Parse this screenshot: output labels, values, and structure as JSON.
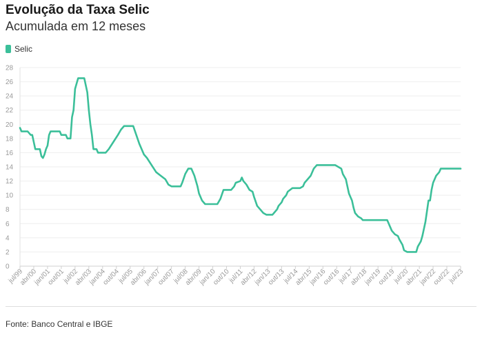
{
  "header": {
    "title": "Evolução da Taxa Selic",
    "subtitle": "Acumulada em 12 meses"
  },
  "legend": {
    "label": "Selic",
    "color": "#3bbf99"
  },
  "footer": {
    "source": "Fonte: Banco Central e IBGE"
  },
  "chart_data": {
    "type": "line",
    "title": "Evolução da Taxa Selic",
    "subtitle": "Acumulada em 12 meses",
    "xlabel": "",
    "ylabel": "",
    "ylim": [
      0,
      28
    ],
    "yticks": [
      0,
      2,
      4,
      6,
      8,
      10,
      12,
      14,
      16,
      18,
      20,
      22,
      24,
      26,
      28
    ],
    "xlim": [
      "1999-07",
      "2023-07"
    ],
    "xticks": [
      {
        "label": "jul/99",
        "t": "1999-07"
      },
      {
        "label": "abr/00",
        "t": "2000-04"
      },
      {
        "label": "jan/01",
        "t": "2001-01"
      },
      {
        "label": "out/01",
        "t": "2001-10"
      },
      {
        "label": "jul/02",
        "t": "2002-07"
      },
      {
        "label": "abr/03",
        "t": "2003-04"
      },
      {
        "label": "jan/04",
        "t": "2004-01"
      },
      {
        "label": "out/04",
        "t": "2004-10"
      },
      {
        "label": "jul/05",
        "t": "2005-07"
      },
      {
        "label": "abr/06",
        "t": "2006-04"
      },
      {
        "label": "jan/07",
        "t": "2007-01"
      },
      {
        "label": "out/07",
        "t": "2007-10"
      },
      {
        "label": "jul/08",
        "t": "2008-07"
      },
      {
        "label": "abr/09",
        "t": "2009-04"
      },
      {
        "label": "jan/10",
        "t": "2010-01"
      },
      {
        "label": "out/10",
        "t": "2010-10"
      },
      {
        "label": "jul/11",
        "t": "2011-07"
      },
      {
        "label": "abr/12",
        "t": "2012-04"
      },
      {
        "label": "jan/13",
        "t": "2013-01"
      },
      {
        "label": "out/13",
        "t": "2013-10"
      },
      {
        "label": "jul/14",
        "t": "2014-07"
      },
      {
        "label": "abr/15",
        "t": "2015-04"
      },
      {
        "label": "jan/16",
        "t": "2016-01"
      },
      {
        "label": "out/16",
        "t": "2016-10"
      },
      {
        "label": "jul/17",
        "t": "2017-07"
      },
      {
        "label": "abr/18",
        "t": "2018-04"
      },
      {
        "label": "jan/19",
        "t": "2019-01"
      },
      {
        "label": "out/19",
        "t": "2019-10"
      },
      {
        "label": "jul/20",
        "t": "2020-07"
      },
      {
        "label": "abr/21",
        "t": "2021-04"
      },
      {
        "label": "jan/22",
        "t": "2022-01"
      },
      {
        "label": "out/22",
        "t": "2022-10"
      },
      {
        "label": "jul/23",
        "t": "2023-07"
      }
    ],
    "grid": true,
    "legend_position": "top-left",
    "series": [
      {
        "name": "Selic",
        "color": "#3bbf99",
        "points": [
          [
            "1999-07",
            19.5
          ],
          [
            "1999-08",
            19.0
          ],
          [
            "1999-12",
            19.0
          ],
          [
            "2000-02",
            18.5
          ],
          [
            "2000-03",
            18.5
          ],
          [
            "2000-04",
            17.5
          ],
          [
            "2000-05",
            16.5
          ],
          [
            "2000-08",
            16.5
          ],
          [
            "2000-09",
            15.5
          ],
          [
            "2000-10",
            15.25
          ],
          [
            "2000-11",
            15.75
          ],
          [
            "2000-12",
            16.5
          ],
          [
            "2001-01",
            17.0
          ],
          [
            "2001-02",
            18.5
          ],
          [
            "2001-03",
            19.0
          ],
          [
            "2001-09",
            19.0
          ],
          [
            "2001-10",
            18.5
          ],
          [
            "2002-01",
            18.5
          ],
          [
            "2002-02",
            18.0
          ],
          [
            "2002-04",
            18.0
          ],
          [
            "2002-05",
            21.0
          ],
          [
            "2002-06",
            22.0
          ],
          [
            "2002-07",
            25.0
          ],
          [
            "2002-09",
            26.5
          ],
          [
            "2003-01",
            26.5
          ],
          [
            "2003-03",
            24.5
          ],
          [
            "2003-04",
            22.0
          ],
          [
            "2003-05",
            20.0
          ],
          [
            "2003-06",
            18.5
          ],
          [
            "2003-07",
            16.5
          ],
          [
            "2003-09",
            16.5
          ],
          [
            "2003-10",
            16.0
          ],
          [
            "2004-03",
            16.0
          ],
          [
            "2004-05",
            16.5
          ],
          [
            "2004-08",
            17.5
          ],
          [
            "2004-11",
            18.5
          ],
          [
            "2005-01",
            19.25
          ],
          [
            "2005-03",
            19.75
          ],
          [
            "2005-09",
            19.75
          ],
          [
            "2005-11",
            18.5
          ],
          [
            "2006-01",
            17.25
          ],
          [
            "2006-04",
            15.75
          ],
          [
            "2006-06",
            15.25
          ],
          [
            "2006-09",
            14.25
          ],
          [
            "2006-12",
            13.25
          ],
          [
            "2007-03",
            12.75
          ],
          [
            "2007-06",
            12.25
          ],
          [
            "2007-08",
            11.5
          ],
          [
            "2007-10",
            11.25
          ],
          [
            "2008-04",
            11.25
          ],
          [
            "2008-05",
            11.75
          ],
          [
            "2008-07",
            13.0
          ],
          [
            "2008-09",
            13.75
          ],
          [
            "2008-11",
            13.75
          ],
          [
            "2009-01",
            12.75
          ],
          [
            "2009-03",
            11.25
          ],
          [
            "2009-04",
            10.25
          ],
          [
            "2009-06",
            9.25
          ],
          [
            "2009-08",
            8.75
          ],
          [
            "2010-04",
            8.75
          ],
          [
            "2010-06",
            9.5
          ],
          [
            "2010-08",
            10.75
          ],
          [
            "2011-01",
            10.75
          ],
          [
            "2011-03",
            11.25
          ],
          [
            "2011-04",
            11.75
          ],
          [
            "2011-07",
            12.0
          ],
          [
            "2011-08",
            12.5
          ],
          [
            "2011-09",
            12.0
          ],
          [
            "2011-11",
            11.5
          ],
          [
            "2012-01",
            10.75
          ],
          [
            "2012-03",
            10.5
          ],
          [
            "2012-04",
            9.75
          ],
          [
            "2012-06",
            8.5
          ],
          [
            "2012-08",
            8.0
          ],
          [
            "2012-10",
            7.5
          ],
          [
            "2012-12",
            7.25
          ],
          [
            "2013-04",
            7.25
          ],
          [
            "2013-05",
            7.5
          ],
          [
            "2013-07",
            8.0
          ],
          [
            "2013-08",
            8.5
          ],
          [
            "2013-10",
            9.0
          ],
          [
            "2013-11",
            9.5
          ],
          [
            "2014-01",
            10.0
          ],
          [
            "2014-02",
            10.5
          ],
          [
            "2014-05",
            11.0
          ],
          [
            "2014-10",
            11.0
          ],
          [
            "2014-12",
            11.25
          ],
          [
            "2015-01",
            11.75
          ],
          [
            "2015-03",
            12.25
          ],
          [
            "2015-05",
            12.75
          ],
          [
            "2015-06",
            13.25
          ],
          [
            "2015-07",
            13.75
          ],
          [
            "2015-09",
            14.25
          ],
          [
            "2016-09",
            14.25
          ],
          [
            "2016-11",
            14.0
          ],
          [
            "2017-01",
            13.75
          ],
          [
            "2017-02",
            13.0
          ],
          [
            "2017-04",
            12.25
          ],
          [
            "2017-05",
            11.25
          ],
          [
            "2017-06",
            10.25
          ],
          [
            "2017-08",
            9.25
          ],
          [
            "2017-09",
            8.25
          ],
          [
            "2017-10",
            7.5
          ],
          [
            "2017-12",
            7.0
          ],
          [
            "2018-02",
            6.75
          ],
          [
            "2018-03",
            6.5
          ],
          [
            "2019-07",
            6.5
          ],
          [
            "2019-08",
            6.0
          ],
          [
            "2019-09",
            5.5
          ],
          [
            "2019-10",
            5.0
          ],
          [
            "2019-12",
            4.5
          ],
          [
            "2020-02",
            4.25
          ],
          [
            "2020-03",
            3.75
          ],
          [
            "2020-05",
            3.0
          ],
          [
            "2020-06",
            2.25
          ],
          [
            "2020-08",
            2.0
          ],
          [
            "2021-02",
            2.0
          ],
          [
            "2021-03",
            2.75
          ],
          [
            "2021-05",
            3.5
          ],
          [
            "2021-06",
            4.25
          ],
          [
            "2021-07",
            5.25
          ],
          [
            "2021-08",
            6.25
          ],
          [
            "2021-09",
            7.75
          ],
          [
            "2021-10",
            9.25
          ],
          [
            "2021-11",
            9.25
          ],
          [
            "2021-12",
            10.75
          ],
          [
            "2022-01",
            11.75
          ],
          [
            "2022-03",
            12.75
          ],
          [
            "2022-05",
            13.25
          ],
          [
            "2022-06",
            13.75
          ],
          [
            "2023-07",
            13.75
          ]
        ]
      }
    ]
  }
}
